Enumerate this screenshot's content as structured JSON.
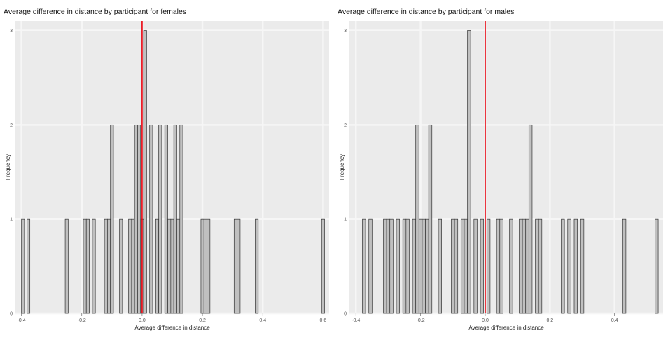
{
  "chart_data": [
    {
      "type": "bar",
      "title": "Average difference in distance by participant for females",
      "xlabel": "Average difference in distance",
      "ylabel": "Frequency",
      "xlim": [
        -0.42,
        0.62
      ],
      "ylim": [
        0,
        3.1
      ],
      "x_ticks": [
        "-0.4",
        "-0.2",
        "0.0",
        "0.2",
        "0.4",
        "0.6"
      ],
      "x_tick_values": [
        -0.4,
        -0.2,
        0.0,
        0.2,
        0.4,
        0.6
      ],
      "y_ticks": [
        "0",
        "1",
        "2",
        "3"
      ],
      "y_tick_values": [
        0,
        1,
        2,
        3
      ],
      "reference_line": {
        "x": 0.0,
        "color": "#e8000b"
      },
      "bar_width": 0.01,
      "bars": [
        {
          "x": -0.395,
          "count": 1
        },
        {
          "x": -0.377,
          "count": 1
        },
        {
          "x": -0.25,
          "count": 1
        },
        {
          "x": -0.19,
          "count": 1
        },
        {
          "x": -0.18,
          "count": 1
        },
        {
          "x": -0.16,
          "count": 1
        },
        {
          "x": -0.12,
          "count": 1
        },
        {
          "x": -0.11,
          "count": 1
        },
        {
          "x": -0.1,
          "count": 2
        },
        {
          "x": -0.07,
          "count": 1
        },
        {
          "x": -0.04,
          "count": 1
        },
        {
          "x": -0.03,
          "count": 1
        },
        {
          "x": -0.02,
          "count": 2
        },
        {
          "x": -0.01,
          "count": 2
        },
        {
          "x": 0.0,
          "count": 1
        },
        {
          "x": 0.01,
          "count": 3
        },
        {
          "x": 0.03,
          "count": 2
        },
        {
          "x": 0.05,
          "count": 1
        },
        {
          "x": 0.06,
          "count": 2
        },
        {
          "x": 0.08,
          "count": 2
        },
        {
          "x": 0.09,
          "count": 1
        },
        {
          "x": 0.1,
          "count": 1
        },
        {
          "x": 0.11,
          "count": 2
        },
        {
          "x": 0.12,
          "count": 1
        },
        {
          "x": 0.13,
          "count": 2
        },
        {
          "x": 0.2,
          "count": 1
        },
        {
          "x": 0.21,
          "count": 1
        },
        {
          "x": 0.22,
          "count": 1
        },
        {
          "x": 0.31,
          "count": 1
        },
        {
          "x": 0.32,
          "count": 1
        },
        {
          "x": 0.38,
          "count": 1
        },
        {
          "x": 0.6,
          "count": 1
        }
      ]
    },
    {
      "type": "bar",
      "title": "Average difference in distance by participant for males",
      "xlabel": "Average difference in distance",
      "ylabel": "Frequency",
      "xlim": [
        -0.42,
        0.55
      ],
      "ylim": [
        0,
        3.1
      ],
      "x_ticks": [
        "-0.4",
        "-0.2",
        "0.0",
        "0.2",
        "0.4"
      ],
      "x_tick_values": [
        -0.4,
        -0.2,
        0.0,
        0.2,
        0.4
      ],
      "y_ticks": [
        "0",
        "1",
        "2",
        "3"
      ],
      "y_tick_values": [
        0,
        1,
        2,
        3
      ],
      "reference_line": {
        "x": 0.0,
        "color": "#e8000b"
      },
      "bar_width": 0.01,
      "bars": [
        {
          "x": -0.375,
          "count": 1
        },
        {
          "x": -0.355,
          "count": 1
        },
        {
          "x": -0.31,
          "count": 1
        },
        {
          "x": -0.3,
          "count": 1
        },
        {
          "x": -0.29,
          "count": 1
        },
        {
          "x": -0.27,
          "count": 1
        },
        {
          "x": -0.25,
          "count": 1
        },
        {
          "x": -0.24,
          "count": 1
        },
        {
          "x": -0.22,
          "count": 1
        },
        {
          "x": -0.21,
          "count": 2
        },
        {
          "x": -0.2,
          "count": 1
        },
        {
          "x": -0.19,
          "count": 1
        },
        {
          "x": -0.18,
          "count": 1
        },
        {
          "x": -0.17,
          "count": 2
        },
        {
          "x": -0.14,
          "count": 1
        },
        {
          "x": -0.1,
          "count": 1
        },
        {
          "x": -0.09,
          "count": 1
        },
        {
          "x": -0.07,
          "count": 1
        },
        {
          "x": -0.06,
          "count": 1
        },
        {
          "x": -0.05,
          "count": 3
        },
        {
          "x": -0.03,
          "count": 1
        },
        {
          "x": -0.01,
          "count": 1
        },
        {
          "x": 0.01,
          "count": 1
        },
        {
          "x": 0.04,
          "count": 1
        },
        {
          "x": 0.05,
          "count": 1
        },
        {
          "x": 0.08,
          "count": 1
        },
        {
          "x": 0.11,
          "count": 1
        },
        {
          "x": 0.12,
          "count": 1
        },
        {
          "x": 0.13,
          "count": 1
        },
        {
          "x": 0.14,
          "count": 2
        },
        {
          "x": 0.16,
          "count": 1
        },
        {
          "x": 0.17,
          "count": 1
        },
        {
          "x": 0.24,
          "count": 1
        },
        {
          "x": 0.26,
          "count": 1
        },
        {
          "x": 0.28,
          "count": 1
        },
        {
          "x": 0.3,
          "count": 1
        },
        {
          "x": 0.43,
          "count": 1
        },
        {
          "x": 0.53,
          "count": 1
        }
      ]
    }
  ],
  "style": {
    "panel_background": "#ebebeb",
    "grid_color": "#f6f6f6",
    "bar_fill": "#c0c0c0",
    "bar_stroke": "#333333"
  }
}
